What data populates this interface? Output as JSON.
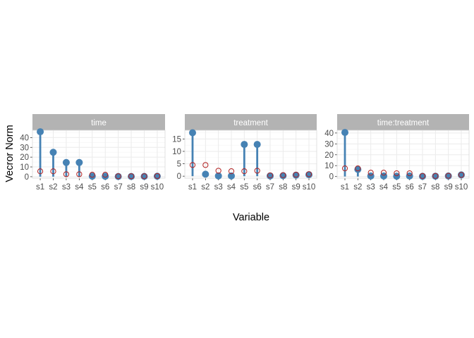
{
  "chart_data": {
    "type": "scatter",
    "xlabel": "Variable",
    "ylabel": "Vecror Norm",
    "grid": true,
    "categories": [
      "s1",
      "s2",
      "s3",
      "s4",
      "s5",
      "s6",
      "s7",
      "s8",
      "s9",
      "s10"
    ],
    "colors": {
      "filled": "#4682B4",
      "open": "#B22222",
      "strip": "#B3B3B3",
      "grid": "#EBEBEB"
    },
    "panels": [
      {
        "strip": "time",
        "ylim": [
          -1.5,
          47.5
        ],
        "yticks": [
          0,
          10,
          20,
          30,
          40
        ],
        "filled": [
          46,
          25,
          14.5,
          14.5,
          0.5,
          0.4,
          0.2,
          0.2,
          0.3,
          0.5
        ],
        "open": [
          5.5,
          5.5,
          2.5,
          2.5,
          2.0,
          2.0,
          0.5,
          0.5,
          0.5,
          0.7
        ]
      },
      {
        "strip": "treatment",
        "ylim": [
          -0.8,
          18.5
        ],
        "yticks": [
          0,
          5,
          10,
          15
        ],
        "filled": [
          17.5,
          0.8,
          0.1,
          0.1,
          12.8,
          12.8,
          0.1,
          0.2,
          0.4,
          0.6
        ],
        "open": [
          4.5,
          4.5,
          2.2,
          2.0,
          2.0,
          2.2,
          0.3,
          0.4,
          0.6,
          0.8
        ]
      },
      {
        "strip": "time:treatment",
        "ylim": [
          -1.5,
          42.5
        ],
        "yticks": [
          0,
          10,
          20,
          30,
          40
        ],
        "filled": [
          40.5,
          6.5,
          0.5,
          0.5,
          0.3,
          0.5,
          0.2,
          0.3,
          0.5,
          1.5
        ],
        "open": [
          7.5,
          7.5,
          3.5,
          3.5,
          3.0,
          3.0,
          0.5,
          0.5,
          0.7,
          1.5
        ]
      }
    ]
  }
}
